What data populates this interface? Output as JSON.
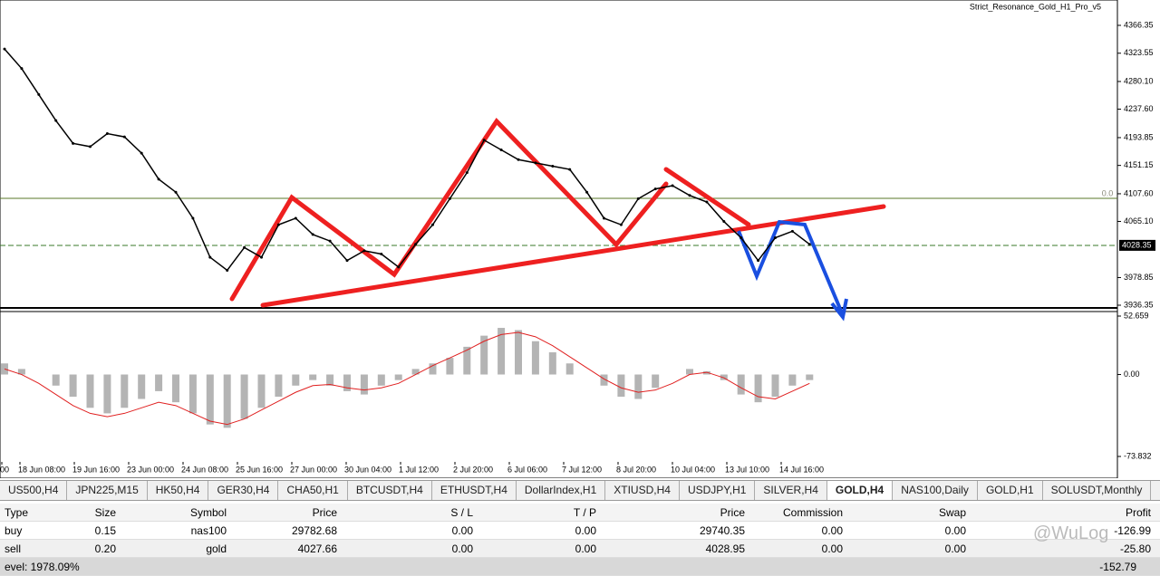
{
  "window_title": "Strict_Resonance_Gold_H1_Pro_v5",
  "chart_data": {
    "type": "line",
    "price": {
      "closes": [
        4330,
        4300,
        4260,
        4220,
        4185,
        4180,
        4200,
        4195,
        4170,
        4130,
        4110,
        4070,
        4010,
        3990,
        4025,
        4010,
        4060,
        4070,
        4045,
        4035,
        4005,
        4020,
        4015,
        3995,
        4030,
        4060,
        4100,
        4140,
        4190,
        4175,
        4160,
        4155,
        4150,
        4145,
        4110,
        4070,
        4060,
        4100,
        4115,
        4120,
        4105,
        4095,
        4065,
        4040,
        4005,
        4040,
        4050,
        4030
      ],
      "color": "#000000",
      "ylim": [
        3936.35,
        4366.35
      ],
      "yticks": [
        4366.35,
        4323.55,
        {
          "value": 4280.1,
          "label": "4280.10"
        },
        {
          "value": 4237.6,
          "label": "4237.60"
        },
        4193.85,
        4151.15,
        {
          "value": 4107.6,
          "label": "4107.60"
        },
        {
          "value": 4065.1,
          "label": "4065.10"
        },
        3978.85,
        3936.35
      ],
      "current_price": 4028.35,
      "level_label": "0.0"
    },
    "macd": {
      "histogram": [
        10,
        5,
        0,
        -10,
        -20,
        -30,
        -35,
        -30,
        -22,
        -15,
        -25,
        -35,
        -45,
        -48,
        -40,
        -30,
        -20,
        -10,
        -5,
        -10,
        -15,
        -18,
        -10,
        -5,
        5,
        10,
        15,
        25,
        35,
        42,
        40,
        30,
        20,
        10,
        0,
        -10,
        -20,
        -22,
        -12,
        0,
        5,
        3,
        -5,
        -18,
        -25,
        -20,
        -10,
        -5
      ],
      "signal": [
        5,
        0,
        -8,
        -18,
        -28,
        -35,
        -38,
        -35,
        -30,
        -25,
        -28,
        -35,
        -42,
        -45,
        -40,
        -32,
        -24,
        -16,
        -10,
        -9,
        -12,
        -14,
        -12,
        -8,
        0,
        8,
        15,
        22,
        30,
        36,
        38,
        34,
        26,
        16,
        6,
        -4,
        -12,
        -16,
        -14,
        -8,
        0,
        2,
        -3,
        -12,
        -20,
        -22,
        -15,
        -8
      ],
      "hist_color": "#b4b4b4",
      "signal_color": "#e02020",
      "ylim": [
        -73.832,
        52.659
      ],
      "yticks": [
        52.659,
        {
          "value": 0,
          "label": "0.00"
        },
        -73.832
      ]
    },
    "x_labels": [
      "00",
      "18 Jun 08:00",
      "19 Jun 16:00",
      "23 Jun 00:00",
      "24 Jun 08:00",
      "25 Jun 16:00",
      "27 Jun 00:00",
      "30 Jun 04:00",
      "1 Jul 12:00",
      "2 Jul 20:00",
      "6 Jul 06:00",
      "7 Jul 12:00",
      "8 Jul 20:00",
      "10 Jul 04:00",
      "13 Jul 10:00",
      "14 Jul 16:00"
    ]
  },
  "tabs": [
    "US500,H4",
    "JPN225,M15",
    "HK50,H4",
    "GER30,H4",
    "CHA50,H1",
    "BTCUSDT,H4",
    "ETHUSDT,H4",
    "DollarIndex,H1",
    "XTIUSD,H4",
    "USDJPY,H1",
    "SILVER,H4",
    "GOLD,H4",
    "NAS100,Daily",
    "GOLD,H1",
    "SOLUSDT,Monthly"
  ],
  "active_tab": 11,
  "table": {
    "header": [
      "Type",
      "Size",
      "Symbol",
      "Price",
      "S / L",
      "T / P",
      "Price",
      "Commission",
      "Swap",
      "Profit"
    ],
    "rows": [
      [
        "buy",
        "0.15",
        "nas100",
        "29782.68",
        "0.00",
        "0.00",
        "29740.35",
        "0.00",
        "0.00",
        "-126.99"
      ],
      [
        "sell",
        "0.20",
        "gold",
        "4027.66",
        "0.00",
        "0.00",
        "4028.95",
        "0.00",
        "0.00",
        "-25.80"
      ]
    ],
    "footer": [
      "evel: 1978.09%",
      "-152.79"
    ]
  },
  "watermark": "@WuLog"
}
